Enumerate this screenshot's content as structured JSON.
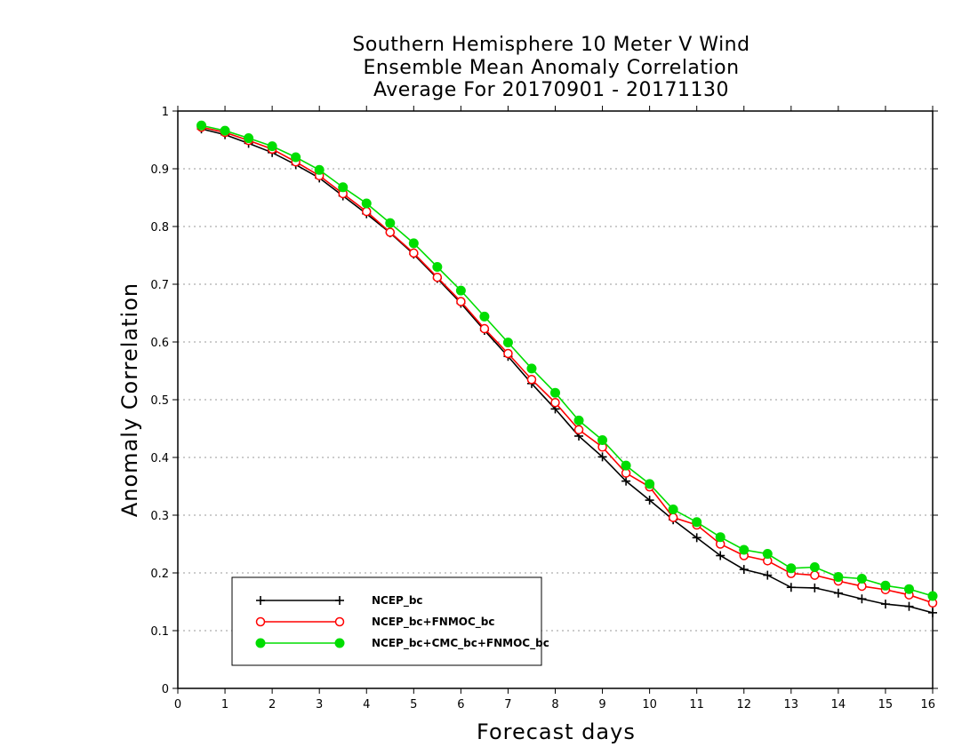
{
  "chart_data": {
    "type": "line",
    "title": [
      "Southern Hemisphere 10 Meter V Wind",
      "Ensemble Mean Anomaly Correlation",
      "Average For 20170901 - 20171130"
    ],
    "xlabel": "Forecast days",
    "ylabel": "Anomaly Correlation",
    "xlim": [
      0,
      16
    ],
    "ylim": [
      0,
      1
    ],
    "xticks": [
      0,
      1,
      2,
      3,
      4,
      5,
      6,
      7,
      8,
      9,
      10,
      11,
      12,
      13,
      14,
      15,
      16
    ],
    "yticks": [
      0,
      0.1,
      0.2,
      0.3,
      0.4,
      0.5,
      0.6,
      0.7,
      0.8,
      0.9,
      1
    ],
    "grid": "horizontal-dotted",
    "legend_placement": "bottom-left",
    "x": [
      0.5,
      1,
      1.5,
      2,
      2.5,
      3,
      3.5,
      4,
      4.5,
      5,
      5.5,
      6,
      6.5,
      7,
      7.5,
      8,
      8.5,
      9,
      9.5,
      10,
      10.5,
      11,
      11.5,
      12,
      12.5,
      13,
      13.5,
      14,
      14.5,
      15,
      15.5,
      16
    ],
    "series": [
      {
        "name": "NCEP_bc",
        "color": "#000000",
        "marker": "plus",
        "values": [
          0.969,
          0.959,
          0.944,
          0.928,
          0.907,
          0.884,
          0.853,
          0.822,
          0.789,
          0.752,
          0.71,
          0.667,
          0.62,
          0.575,
          0.528,
          0.484,
          0.437,
          0.401,
          0.359,
          0.326,
          0.292,
          0.261,
          0.23,
          0.206,
          0.196,
          0.175,
          0.174,
          0.165,
          0.155,
          0.146,
          0.142,
          0.131
        ]
      },
      {
        "name": "NCEP_bc+FNMOC_bc",
        "color": "#ff0000",
        "marker": "open-circle",
        "values": [
          0.972,
          0.963,
          0.949,
          0.934,
          0.912,
          0.888,
          0.857,
          0.826,
          0.79,
          0.754,
          0.712,
          0.67,
          0.623,
          0.58,
          0.535,
          0.495,
          0.448,
          0.418,
          0.373,
          0.349,
          0.296,
          0.283,
          0.25,
          0.23,
          0.221,
          0.199,
          0.196,
          0.186,
          0.177,
          0.171,
          0.162,
          0.148
        ]
      },
      {
        "name": "NCEP_bc+CMC_bc+FNMOC_bc",
        "color": "#00dd00",
        "marker": "filled-circle",
        "values": [
          0.975,
          0.966,
          0.953,
          0.939,
          0.92,
          0.898,
          0.868,
          0.84,
          0.806,
          0.771,
          0.73,
          0.689,
          0.644,
          0.599,
          0.554,
          0.512,
          0.464,
          0.43,
          0.386,
          0.354,
          0.31,
          0.288,
          0.262,
          0.24,
          0.233,
          0.208,
          0.21,
          0.193,
          0.19,
          0.178,
          0.172,
          0.16
        ]
      }
    ]
  }
}
